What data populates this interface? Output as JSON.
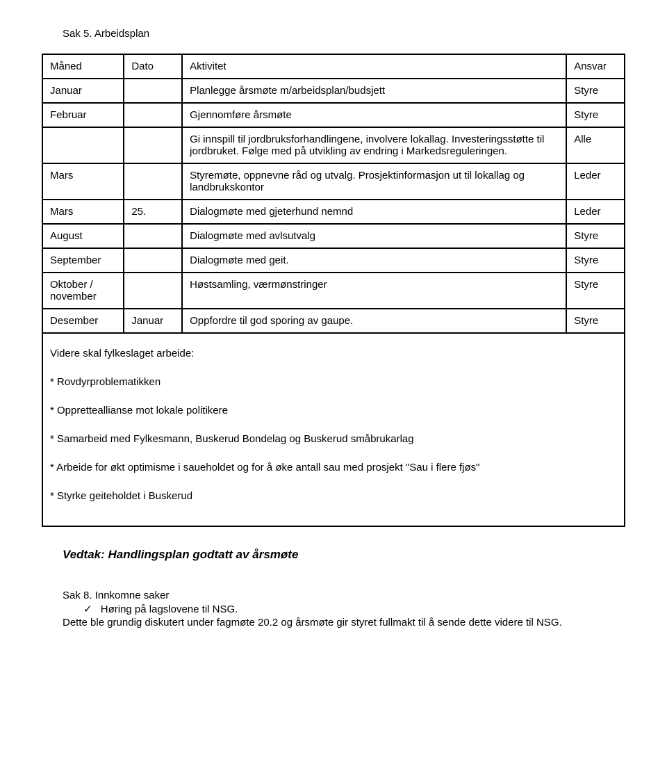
{
  "title": "Sak 5. Arbeidsplan",
  "table": {
    "headers": [
      "Måned",
      "Dato",
      "Aktivitet",
      "Ansvar"
    ],
    "rows": [
      {
        "m": "Januar",
        "d": "",
        "a": "Planlegge årsmøte m/arbeidsplan/budsjett",
        "r": "Styre"
      },
      {
        "m": "Februar",
        "d": "",
        "a": "Gjennomføre årsmøte",
        "r": "Styre"
      },
      {
        "m": "",
        "d": "",
        "a": "Gi innspill til jordbruksforhandlingene, involvere lokallag. Investeringsstøtte til jordbruket. Følge med på utvikling av endring i Markedsreguleringen.",
        "r": "Alle"
      },
      {
        "m": "Mars",
        "d": "",
        "a": "Styremøte, oppnevne råd og utvalg. Prosjektinformasjon ut til lokallag og landbrukskontor",
        "r": "Leder"
      },
      {
        "m": "Mars",
        "d": "25.",
        "a": "Dialogmøte med gjeterhund nemnd",
        "r": "Leder"
      },
      {
        "m": "August",
        "d": "",
        "a": "Dialogmøte med avlsutvalg",
        "r": "Styre"
      },
      {
        "m": "September",
        "d": "",
        "a": "Dialogmøte med geit.",
        "r": "Styre"
      },
      {
        "m": "Oktober / november",
        "d": "",
        "a": "Høstsamling, værmønstringer",
        "r": "Styre"
      },
      {
        "m": "Desember",
        "d": "Januar",
        "a": "Oppfordre til god sporing av gaupe.",
        "r": "Styre"
      }
    ],
    "after": {
      "intro": "Videre skal fylkeslaget arbeide:",
      "items": [
        "* Rovdyrproblematikken",
        "* Oppretteallianse mot lokale politikere",
        "* Samarbeid med Fylkesmann, Buskerud Bondelag og Buskerud småbrukarlag",
        "* Arbeide for økt optimisme i saueholdet og for å øke antall sau med prosjekt \"Sau i flere fjøs\"",
        "* Styrke geiteholdet i Buskerud"
      ]
    }
  },
  "vedtak": "Vedtak: Handlingsplan godtatt av årsmøte",
  "sak8": {
    "head": "Sak 8. Innkomne saker",
    "check_glyph": "✓",
    "check_item": "Høring på lagslovene til NSG.",
    "desc": "Dette ble grundig diskutert under fagmøte 20.2 og årsmøte gir styret fullmakt til å sende dette videre til NSG."
  }
}
